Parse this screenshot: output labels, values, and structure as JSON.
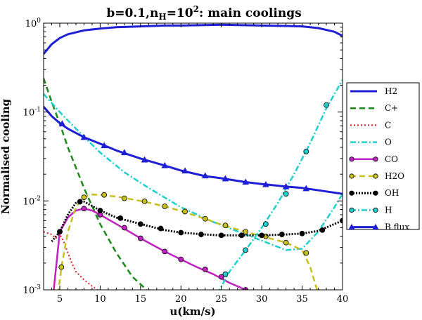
{
  "chart_data": {
    "type": "line",
    "title_main": "b=0.1,n",
    "title_sub": "H",
    "title_eq": "=10",
    "title_exp": "2",
    "title_tail": ": main coolings",
    "xlabel": "u(km/s)",
    "ylabel": "Normalised cooling",
    "xlim": [
      3,
      40
    ],
    "ylim": [
      0.001,
      1
    ],
    "yscale": "log",
    "x_ticks": [
      5,
      10,
      15,
      20,
      25,
      30,
      35,
      40
    ],
    "x_tick_labels": [
      "5",
      "10",
      "15",
      "20",
      "25",
      "30",
      "35",
      "40"
    ],
    "y_ticks": [
      0.001,
      0.01,
      0.1,
      1
    ],
    "y_tick_base": "10",
    "y_tick_exps": [
      "-3",
      "-2",
      "-1",
      "0"
    ],
    "legend_position": "right",
    "series": [
      {
        "name": "H2",
        "color": "#1f1fd6",
        "dash": "solid",
        "marker": "none",
        "width": 3,
        "x": [
          3,
          4,
          5,
          6,
          8,
          10,
          12,
          15,
          18,
          20,
          23,
          25,
          27,
          30,
          33,
          35,
          37,
          39,
          40
        ],
        "y": [
          0.45,
          0.58,
          0.68,
          0.75,
          0.83,
          0.87,
          0.9,
          0.92,
          0.94,
          0.94,
          0.95,
          0.96,
          0.95,
          0.94,
          0.93,
          0.92,
          0.88,
          0.8,
          0.72
        ]
      },
      {
        "name": "C+",
        "color": "#1a8a1a",
        "dash": "8,5",
        "marker": "none",
        "width": 2.5,
        "x": [
          3,
          4,
          5,
          6,
          8,
          10,
          12,
          14,
          16
        ],
        "y": [
          0.24,
          0.13,
          0.074,
          0.04,
          0.014,
          0.0055,
          0.0026,
          0.0014,
          0.00095
        ]
      },
      {
        "name": "C",
        "color": "#e02020",
        "dash": "2,3",
        "marker": "none",
        "width": 2,
        "x": [
          3,
          4,
          4.5,
          5,
          5.5,
          6,
          6.5,
          7,
          8,
          9,
          10,
          11
        ],
        "y": [
          0.0045,
          0.0042,
          0.0038,
          0.0042,
          0.0035,
          0.0026,
          0.002,
          0.0016,
          0.0013,
          0.0011,
          0.00095,
          0.0008
        ]
      },
      {
        "name": "O",
        "color": "#1ecfcf",
        "dash": "8,3,2,3",
        "marker": "none",
        "width": 2.5,
        "x": [
          3,
          5,
          7,
          10,
          13,
          16,
          20,
          24,
          28,
          31,
          33,
          35,
          37,
          39,
          40
        ],
        "y": [
          0.16,
          0.1,
          0.065,
          0.035,
          0.021,
          0.014,
          0.0085,
          0.0058,
          0.0042,
          0.0033,
          0.0028,
          0.0029,
          0.0045,
          0.0085,
          0.012
        ]
      },
      {
        "name": "CO",
        "color": "#c020c0",
        "dash": "solid",
        "marker": "circle",
        "width": 2.5,
        "x": [
          4.2,
          5,
          6,
          7,
          8,
          9,
          10,
          12,
          15,
          18,
          20,
          22,
          24,
          26,
          28,
          29
        ],
        "y": [
          0.0009,
          0.0045,
          0.0065,
          0.0078,
          0.0082,
          0.0078,
          0.007,
          0.0055,
          0.0038,
          0.0027,
          0.0022,
          0.0018,
          0.0015,
          0.0012,
          0.001,
          0.0009
        ],
        "marker_x": [
          5,
          8,
          10,
          13,
          15,
          18,
          20,
          23,
          25,
          28
        ],
        "marker_y": [
          0.0045,
          0.0082,
          0.007,
          0.005,
          0.0038,
          0.0027,
          0.0022,
          0.0017,
          0.0014,
          0.001
        ]
      },
      {
        "name": "H2O",
        "color": "#c8c020",
        "dash": "8,5",
        "marker": "circle",
        "width": 2.5,
        "x": [
          4.8,
          5.2,
          6,
          7,
          8,
          9,
          10,
          12,
          15,
          18,
          20,
          23,
          25,
          28,
          30,
          33,
          35,
          36,
          37
        ],
        "y": [
          0.0009,
          0.0018,
          0.0045,
          0.0085,
          0.011,
          0.0118,
          0.0117,
          0.0112,
          0.01,
          0.0087,
          0.0077,
          0.0063,
          0.0054,
          0.0045,
          0.004,
          0.0034,
          0.0028,
          0.0018,
          0.0009
        ],
        "marker_x": [
          5.2,
          8,
          10.5,
          13,
          15.5,
          18,
          20.5,
          23,
          25.5,
          28,
          30.5,
          33,
          35.5
        ],
        "marker_y": [
          0.0018,
          0.011,
          0.0117,
          0.0107,
          0.0099,
          0.0087,
          0.0076,
          0.0063,
          0.0053,
          0.0045,
          0.004,
          0.0034,
          0.0026
        ]
      },
      {
        "name": "OH",
        "color": "#000000",
        "dash": "2,2",
        "marker": "circle",
        "width": 3,
        "x": [
          4,
          5,
          6,
          7,
          8,
          9,
          10,
          12,
          15,
          18,
          20,
          23,
          25,
          28,
          30,
          33,
          35,
          37,
          39,
          40
        ],
        "y": [
          0.0035,
          0.0045,
          0.007,
          0.0095,
          0.0098,
          0.0088,
          0.0078,
          0.0065,
          0.0055,
          0.0047,
          0.0044,
          0.0042,
          0.0041,
          0.0041,
          0.0041,
          0.0042,
          0.0043,
          0.0046,
          0.0055,
          0.006
        ],
        "marker_x": [
          5,
          7.5,
          10,
          12.5,
          15,
          17.5,
          20,
          22.5,
          25,
          27.5,
          30,
          32.5,
          35,
          37.5,
          40
        ],
        "marker_y": [
          0.0045,
          0.0098,
          0.0078,
          0.0064,
          0.0055,
          0.0049,
          0.0044,
          0.0042,
          0.0041,
          0.0041,
          0.0041,
          0.0042,
          0.0043,
          0.0047,
          0.006
        ]
      },
      {
        "name": "H",
        "color": "#1ecfcf",
        "dash": "8,3,2,3",
        "marker": "circle",
        "width": 2.5,
        "x": [
          24.5,
          26,
          28,
          30,
          32,
          34,
          36,
          38,
          40
        ],
        "y": [
          0.0009,
          0.0016,
          0.0028,
          0.005,
          0.0095,
          0.02,
          0.045,
          0.11,
          0.23
        ],
        "marker_x": [
          25.5,
          28,
          30.5,
          33,
          35.5,
          38
        ],
        "marker_y": [
          0.0015,
          0.0028,
          0.0055,
          0.012,
          0.036,
          0.12
        ]
      },
      {
        "name": "B flux",
        "color": "#1f1fd6",
        "dash": "solid",
        "marker": "triangle",
        "width": 3,
        "x": [
          3,
          4,
          5,
          6,
          8,
          10,
          12,
          15,
          18,
          20,
          23,
          25,
          28,
          30,
          33,
          35,
          38,
          40
        ],
        "y": [
          0.115,
          0.09,
          0.075,
          0.065,
          0.052,
          0.044,
          0.037,
          0.03,
          0.025,
          0.022,
          0.019,
          0.018,
          0.0163,
          0.0155,
          0.0145,
          0.014,
          0.0128,
          0.012
        ],
        "marker_x": [
          5.3,
          8,
          10.5,
          13,
          15.5,
          18,
          20.5,
          23,
          25.5,
          28,
          30.5,
          33,
          35.5
        ],
        "marker_y": [
          0.074,
          0.052,
          0.042,
          0.035,
          0.029,
          0.025,
          0.0218,
          0.0192,
          0.0178,
          0.0163,
          0.0153,
          0.0145,
          0.0138
        ]
      }
    ]
  }
}
